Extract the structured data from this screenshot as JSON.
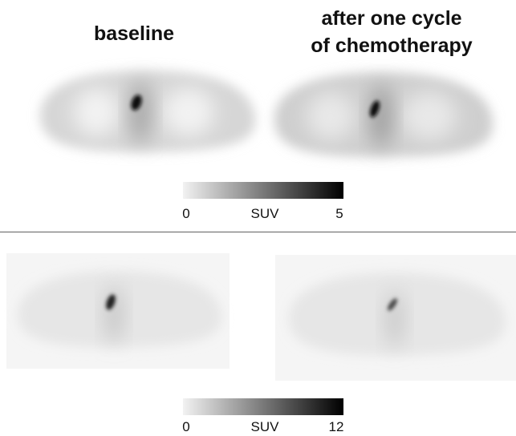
{
  "titles": {
    "left": "baseline",
    "right": [
      "after one cycle",
      "of chemotherapy"
    ]
  },
  "scales": [
    {
      "min": "0",
      "label": "SUV",
      "max": "5"
    },
    {
      "min": "0",
      "label": "SUV",
      "max": "12"
    }
  ]
}
